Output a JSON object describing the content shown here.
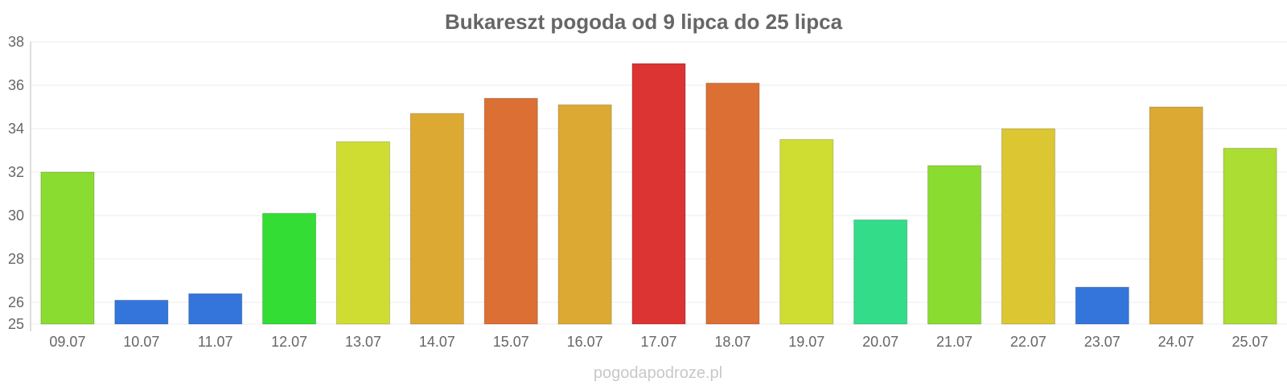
{
  "chart_data": {
    "type": "bar",
    "title": "Bukareszt pogoda od 9 lipca do 25 lipca",
    "xlabel": "",
    "ylabel": "",
    "categories": [
      "09.07",
      "10.07",
      "11.07",
      "12.07",
      "13.07",
      "14.07",
      "15.07",
      "16.07",
      "17.07",
      "18.07",
      "19.07",
      "20.07",
      "21.07",
      "22.07",
      "23.07",
      "24.07",
      "25.07"
    ],
    "values": [
      32.0,
      26.1,
      26.4,
      30.1,
      33.4,
      34.7,
      35.4,
      35.1,
      37.0,
      36.1,
      33.5,
      29.8,
      32.3,
      34.0,
      26.7,
      35.0,
      33.1
    ],
    "colors": [
      "#8adc30",
      "#3375db",
      "#3375db",
      "#33dd33",
      "#cfdd33",
      "#dca933",
      "#dc6f33",
      "#dca933",
      "#dc3333",
      "#dc6f33",
      "#cfdd33",
      "#33dc88",
      "#8adc30",
      "#dcc733",
      "#3375db",
      "#dca933",
      "#acdd33"
    ],
    "ylim": [
      25,
      38
    ],
    "yticks": [
      25,
      26,
      28,
      30,
      32,
      34,
      36,
      38
    ],
    "grid": true,
    "legend": "none"
  },
  "watermark": "pogodapodroze.pl"
}
